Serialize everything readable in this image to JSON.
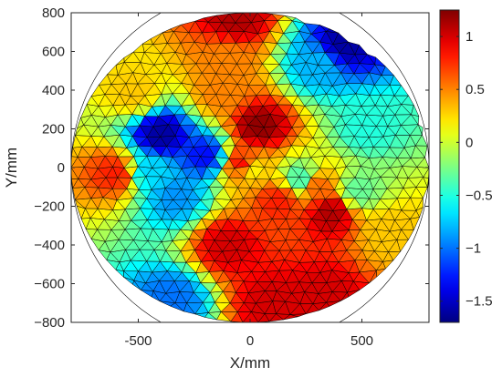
{
  "chart_data": {
    "type": "heatmap",
    "title": "",
    "xlabel": "X/mm",
    "ylabel": "Y/mm",
    "xlim": [
      -800,
      800
    ],
    "ylim": [
      -800,
      800
    ],
    "xticks": [
      "-500",
      "0",
      "500"
    ],
    "xtick_values": [
      -500,
      0,
      500
    ],
    "yticks": [
      "800",
      "600",
      "400",
      "200",
      "0",
      "−200",
      "−400",
      "−600",
      "−800"
    ],
    "ytick_values": [
      800,
      600,
      400,
      200,
      0,
      -200,
      -400,
      -600,
      -800
    ],
    "domain_radius": 800,
    "colorbar": {
      "colormap": "jet",
      "range": [
        -1.7,
        1.25
      ],
      "ticks": [
        "1",
        "0.5",
        "0",
        "−0.5",
        "−1",
        "−1.5"
      ],
      "tick_values": [
        1,
        0.5,
        0,
        -0.5,
        -1,
        -1.5
      ]
    },
    "features": [
      {
        "x": 0,
        "y": 0,
        "value": 0.1
      },
      {
        "x": 40,
        "y": 210,
        "value": 1.2
      },
      {
        "x": -30,
        "y": 20,
        "value": 0.9
      },
      {
        "x": -400,
        "y": 170,
        "value": -1.6
      },
      {
        "x": -200,
        "y": 60,
        "value": -1.3
      },
      {
        "x": -330,
        "y": -150,
        "value": -0.9
      },
      {
        "x": -450,
        "y": -20,
        "value": -0.7
      },
      {
        "x": 420,
        "y": 640,
        "value": -1.6
      },
      {
        "x": 300,
        "y": 530,
        "value": -0.8
      },
      {
        "x": -600,
        "y": -30,
        "value": 0.8
      },
      {
        "x": -100,
        "y": -400,
        "value": 1.0
      },
      {
        "x": 100,
        "y": -700,
        "value": 1.0
      },
      {
        "x": 330,
        "y": -650,
        "value": 1.0
      },
      {
        "x": 360,
        "y": -230,
        "value": 1.1
      },
      {
        "x": 300,
        "y": -100,
        "value": 0.6
      },
      {
        "x": -60,
        "y": 770,
        "value": 1.1
      },
      {
        "x": 130,
        "y": -170,
        "value": 0.8
      },
      {
        "x": -100,
        "y": 550,
        "value": 0.5
      },
      {
        "x": 520,
        "y": 200,
        "value": -0.5
      },
      {
        "x": 620,
        "y": -330,
        "value": 0.3
      },
      {
        "x": -350,
        "y": -680,
        "value": -1.0
      },
      {
        "x": -130,
        "y": 380,
        "value": 0.5
      },
      {
        "x": 480,
        "y": -120,
        "value": -0.3
      },
      {
        "x": 230,
        "y": -60,
        "value": -0.4
      },
      {
        "x": -520,
        "y": 380,
        "value": 0.3
      }
    ],
    "grid": false,
    "legend": "none"
  }
}
